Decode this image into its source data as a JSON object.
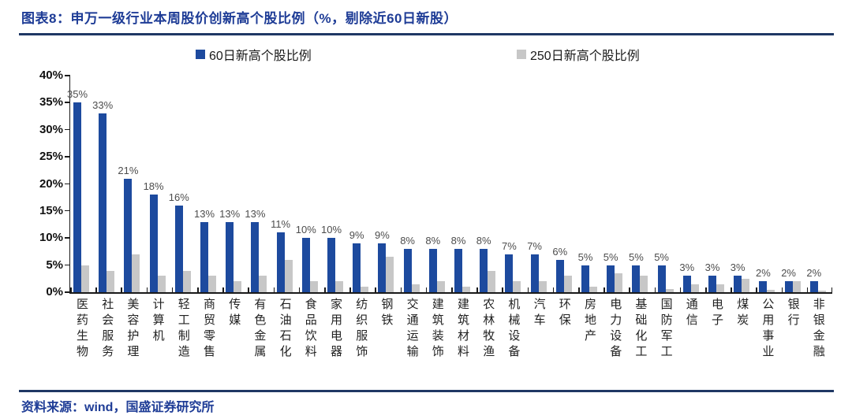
{
  "header": {
    "title": "图表8：申万一级行业本周股价创新高个股比例（%，剔除近60日新股）"
  },
  "footer": {
    "source": "资料来源：wind，国盛证券研究所"
  },
  "colors": {
    "series_60d": "#1d4a9e",
    "series_250d": "#c7c7c7",
    "accent_navy": "#1e3c96",
    "axis": "#1a1a1a"
  },
  "chart_data": {
    "type": "bar",
    "title": "申万一级行业本周股价创新高个股比例（%，剔除近60日新股）",
    "categories": [
      "医药生物",
      "社会服务",
      "美容护理",
      "计算机",
      "轻工制造",
      "商贸零售",
      "传媒",
      "有色金属",
      "石油石化",
      "食品饮料",
      "家用电器",
      "纺织服饰",
      "钢铁",
      "交通运输",
      "建筑装饰",
      "建筑材料",
      "农林牧渔",
      "机械设备",
      "汽车",
      "环保",
      "房地产",
      "电力设备",
      "基础化工",
      "国防军工",
      "通信",
      "电子",
      "煤炭",
      "公用事业",
      "银行",
      "非银金融"
    ],
    "series": [
      {
        "name": "60日新高个股比例",
        "color": "#1d4a9e",
        "values": [
          35,
          33,
          21,
          18,
          16,
          13,
          13,
          13,
          11,
          10,
          10,
          9,
          9,
          8,
          8,
          8,
          8,
          7,
          7,
          6,
          5,
          5,
          5,
          5,
          3,
          3,
          3,
          2,
          2,
          2
        ],
        "data_labels": [
          "35%",
          "33%",
          "21%",
          "18%",
          "16%",
          "13%",
          "13%",
          "13%",
          "11%",
          "10%",
          "10%",
          "9%",
          "9%",
          "8%",
          "8%",
          "8%",
          "8%",
          "7%",
          "7%",
          "6%",
          "5%",
          "5%",
          "5%",
          "5%",
          "3%",
          "3%",
          "3%",
          "2%",
          "2%",
          "2%"
        ]
      },
      {
        "name": "250日新高个股比例",
        "color": "#c7c7c7",
        "values": [
          5,
          4,
          7,
          3,
          4,
          3,
          2,
          3,
          6,
          2,
          2,
          1,
          6.5,
          1.5,
          2,
          1,
          4,
          2,
          2,
          3,
          1,
          3.5,
          3,
          0.6,
          1.5,
          1.5,
          2.5,
          0.4,
          2,
          0.3
        ],
        "data_labels": []
      }
    ],
    "xlabel": "",
    "ylabel": "",
    "ylim": [
      0,
      40
    ],
    "ytick_step": 5,
    "ytick_suffix": "%",
    "grid": false,
    "legend_position": "top"
  }
}
